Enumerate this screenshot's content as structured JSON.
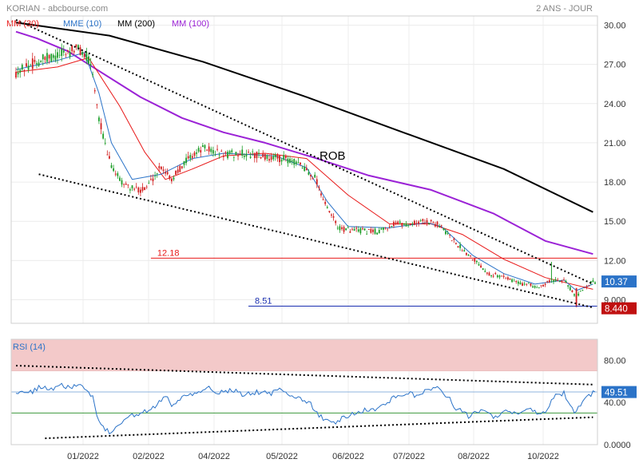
{
  "header": {
    "source": "KORIAN - abcbourse.com",
    "period": "2 ANS - JOUR"
  },
  "legend": [
    {
      "label": "MM (30)",
      "color": "#e81919"
    },
    {
      "label": "MME (10)",
      "color": "#2b73c8"
    },
    {
      "label": "MM (200)",
      "color": "#000000"
    },
    {
      "label": "MM (100)",
      "color": "#9b22d6"
    }
  ],
  "colors": {
    "up_candle": "#1f9e2a",
    "down_candle": "#d22020",
    "trendline": "#000000",
    "h_line_resistance": "#e81919",
    "h_line_support": "#1a2fb0",
    "rsi_line": "#2b73c8",
    "rsi_overbought_zone": "#f3c9c9",
    "price_badge": "#2b73c8",
    "low_badge": "#c01010"
  },
  "chart_data": [
    {
      "type": "candlestick",
      "title": "",
      "x_ticks": [
        "01/2022",
        "02/2022",
        "04/2022",
        "05/2022",
        "06/2022",
        "07/2022",
        "08/2022",
        "10/2022"
      ],
      "y_ticks": [
        "30.00",
        "27.00",
        "24.00",
        "21.00",
        "18.00",
        "15.00",
        "12.00",
        "9.000"
      ],
      "ylim": [
        7.2,
        30.7
      ],
      "trend_label": "ROB",
      "price_path": [
        {
          "i": 0,
          "p": 26.4
        },
        {
          "i": 10,
          "p": 27.2
        },
        {
          "i": 22,
          "p": 27.8
        },
        {
          "i": 30,
          "p": 28.2
        },
        {
          "i": 36,
          "p": 27.2
        },
        {
          "i": 40,
          "p": 23.0
        },
        {
          "i": 44,
          "p": 20.0
        },
        {
          "i": 50,
          "p": 18.1
        },
        {
          "i": 56,
          "p": 17.5
        },
        {
          "i": 62,
          "p": 17.4
        },
        {
          "i": 70,
          "p": 19.2
        },
        {
          "i": 75,
          "p": 18.2
        },
        {
          "i": 82,
          "p": 19.7
        },
        {
          "i": 90,
          "p": 20.6
        },
        {
          "i": 100,
          "p": 20.1
        },
        {
          "i": 110,
          "p": 20.2
        },
        {
          "i": 120,
          "p": 19.9
        },
        {
          "i": 130,
          "p": 19.8
        },
        {
          "i": 138,
          "p": 19.2
        },
        {
          "i": 144,
          "p": 18.4
        },
        {
          "i": 150,
          "p": 15.9
        },
        {
          "i": 156,
          "p": 14.4
        },
        {
          "i": 164,
          "p": 14.3
        },
        {
          "i": 174,
          "p": 14.2
        },
        {
          "i": 182,
          "p": 14.8
        },
        {
          "i": 190,
          "p": 14.8
        },
        {
          "i": 198,
          "p": 15.0
        },
        {
          "i": 204,
          "p": 14.7
        },
        {
          "i": 212,
          "p": 13.3
        },
        {
          "i": 220,
          "p": 12.2
        },
        {
          "i": 228,
          "p": 11.0
        },
        {
          "i": 236,
          "p": 10.7
        },
        {
          "i": 244,
          "p": 10.2
        },
        {
          "i": 252,
          "p": 10.0
        },
        {
          "i": 258,
          "p": 10.5
        },
        {
          "i": 264,
          "p": 10.6
        },
        {
          "i": 268,
          "p": 9.6
        },
        {
          "i": 270,
          "p": 9.2
        },
        {
          "i": 274,
          "p": 10.0
        },
        {
          "i": 278,
          "p": 10.37
        }
      ],
      "series": [
        {
          "name": "MM (200)",
          "color": "#000000",
          "width": 2,
          "points": [
            {
              "i": 0,
              "p": 30.2
            },
            {
              "i": 45,
              "p": 29.2
            },
            {
              "i": 90,
              "p": 27.2
            },
            {
              "i": 140,
              "p": 24.5
            },
            {
              "i": 190,
              "p": 21.6
            },
            {
              "i": 235,
              "p": 19.0
            },
            {
              "i": 278,
              "p": 15.7
            }
          ]
        },
        {
          "name": "MM (100)",
          "color": "#9b22d6",
          "width": 2,
          "points": [
            {
              "i": 0,
              "p": 29.5
            },
            {
              "i": 10,
              "p": 29.0
            },
            {
              "i": 25,
              "p": 28.0
            },
            {
              "i": 40,
              "p": 26.5
            },
            {
              "i": 60,
              "p": 24.5
            },
            {
              "i": 80,
              "p": 22.9
            },
            {
              "i": 100,
              "p": 21.8
            },
            {
              "i": 120,
              "p": 21.0
            },
            {
              "i": 145,
              "p": 19.8
            },
            {
              "i": 170,
              "p": 18.5
            },
            {
              "i": 200,
              "p": 17.4
            },
            {
              "i": 230,
              "p": 15.6
            },
            {
              "i": 255,
              "p": 13.5
            },
            {
              "i": 278,
              "p": 12.5
            }
          ]
        },
        {
          "name": "MM (30)",
          "color": "#e81919",
          "width": 1,
          "points": [
            {
              "i": 0,
              "p": 26.4
            },
            {
              "i": 20,
              "p": 26.8
            },
            {
              "i": 35,
              "p": 27.5
            },
            {
              "i": 50,
              "p": 23.8
            },
            {
              "i": 62,
              "p": 20.3
            },
            {
              "i": 72,
              "p": 18.2
            },
            {
              "i": 85,
              "p": 19.0
            },
            {
              "i": 100,
              "p": 20.0
            },
            {
              "i": 120,
              "p": 20.2
            },
            {
              "i": 140,
              "p": 19.8
            },
            {
              "i": 160,
              "p": 17.0
            },
            {
              "i": 180,
              "p": 14.8
            },
            {
              "i": 200,
              "p": 14.8
            },
            {
              "i": 215,
              "p": 14.0
            },
            {
              "i": 235,
              "p": 12.1
            },
            {
              "i": 255,
              "p": 10.7
            },
            {
              "i": 265,
              "p": 10.3
            },
            {
              "i": 278,
              "p": 9.8
            }
          ]
        },
        {
          "name": "MME (10)",
          "color": "#2b73c8",
          "width": 1,
          "points": [
            {
              "i": 0,
              "p": 26.6
            },
            {
              "i": 20,
              "p": 27.3
            },
            {
              "i": 33,
              "p": 27.9
            },
            {
              "i": 40,
              "p": 24.8
            },
            {
              "i": 46,
              "p": 21.0
            },
            {
              "i": 56,
              "p": 18.2
            },
            {
              "i": 70,
              "p": 18.6
            },
            {
              "i": 85,
              "p": 19.8
            },
            {
              "i": 100,
              "p": 20.2
            },
            {
              "i": 125,
              "p": 20.0
            },
            {
              "i": 140,
              "p": 19.1
            },
            {
              "i": 150,
              "p": 16.5
            },
            {
              "i": 160,
              "p": 14.6
            },
            {
              "i": 180,
              "p": 14.5
            },
            {
              "i": 198,
              "p": 14.9
            },
            {
              "i": 205,
              "p": 14.6
            },
            {
              "i": 220,
              "p": 12.4
            },
            {
              "i": 235,
              "p": 11.0
            },
            {
              "i": 250,
              "p": 10.2
            },
            {
              "i": 264,
              "p": 10.5
            },
            {
              "i": 270,
              "p": 9.7
            },
            {
              "i": 278,
              "p": 10.2
            }
          ]
        }
      ],
      "trendlines": [
        {
          "from": {
            "i": 0,
            "p": 30.4
          },
          "to": {
            "i": 278,
            "p": 10.2
          }
        },
        {
          "from": {
            "i": 11,
            "p": 18.6
          },
          "to": {
            "i": 278,
            "p": 8.4
          }
        }
      ],
      "h_lines": [
        {
          "label": "12.18",
          "value": 12.18,
          "from_i": 65,
          "color": "#e81919"
        },
        {
          "label": "8.51",
          "value": 8.51,
          "from_i": 112,
          "color": "#1a2fb0"
        }
      ],
      "last_price_label": "10.37",
      "last_price": 10.37,
      "low_label": "8.440",
      "low_value": 8.44,
      "n_candles": 280
    },
    {
      "type": "line",
      "title": "RSI (14)",
      "ylim": [
        0,
        100
      ],
      "y_ticks": [
        "80.00",
        "40.00",
        "0.0000"
      ],
      "overbought_zone": [
        70,
        100
      ],
      "ref_levels": [
        {
          "value": 50,
          "color": "#8fb4df"
        },
        {
          "value": 30,
          "color": "#3d9a3d"
        }
      ],
      "rsi_path": [
        {
          "i": 0,
          "p": 50
        },
        {
          "i": 5,
          "p": 47
        },
        {
          "i": 12,
          "p": 55
        },
        {
          "i": 18,
          "p": 52
        },
        {
          "i": 22,
          "p": 58
        },
        {
          "i": 26,
          "p": 53
        },
        {
          "i": 30,
          "p": 56
        },
        {
          "i": 34,
          "p": 52
        },
        {
          "i": 37,
          "p": 45
        },
        {
          "i": 40,
          "p": 22
        },
        {
          "i": 43,
          "p": 14
        },
        {
          "i": 46,
          "p": 10
        },
        {
          "i": 50,
          "p": 20
        },
        {
          "i": 55,
          "p": 27
        },
        {
          "i": 60,
          "p": 29
        },
        {
          "i": 66,
          "p": 34
        },
        {
          "i": 72,
          "p": 46
        },
        {
          "i": 76,
          "p": 36
        },
        {
          "i": 80,
          "p": 44
        },
        {
          "i": 86,
          "p": 49
        },
        {
          "i": 92,
          "p": 54
        },
        {
          "i": 98,
          "p": 50
        },
        {
          "i": 104,
          "p": 52
        },
        {
          "i": 110,
          "p": 47
        },
        {
          "i": 116,
          "p": 50
        },
        {
          "i": 122,
          "p": 48
        },
        {
          "i": 128,
          "p": 53
        },
        {
          "i": 133,
          "p": 46
        },
        {
          "i": 138,
          "p": 43
        },
        {
          "i": 142,
          "p": 38
        },
        {
          "i": 146,
          "p": 28
        },
        {
          "i": 150,
          "p": 22
        },
        {
          "i": 154,
          "p": 20
        },
        {
          "i": 158,
          "p": 26
        },
        {
          "i": 164,
          "p": 31
        },
        {
          "i": 170,
          "p": 33
        },
        {
          "i": 176,
          "p": 36
        },
        {
          "i": 182,
          "p": 45
        },
        {
          "i": 188,
          "p": 49
        },
        {
          "i": 193,
          "p": 46
        },
        {
          "i": 198,
          "p": 52
        },
        {
          "i": 203,
          "p": 55
        },
        {
          "i": 208,
          "p": 45
        },
        {
          "i": 212,
          "p": 35
        },
        {
          "i": 218,
          "p": 27
        },
        {
          "i": 224,
          "p": 32
        },
        {
          "i": 230,
          "p": 27
        },
        {
          "i": 236,
          "p": 31
        },
        {
          "i": 242,
          "p": 29
        },
        {
          "i": 248,
          "p": 34
        },
        {
          "i": 252,
          "p": 27
        },
        {
          "i": 256,
          "p": 34
        },
        {
          "i": 260,
          "p": 47
        },
        {
          "i": 264,
          "p": 49
        },
        {
          "i": 266,
          "p": 42
        },
        {
          "i": 269,
          "p": 28
        },
        {
          "i": 272,
          "p": 38
        },
        {
          "i": 275,
          "p": 44
        },
        {
          "i": 278,
          "p": 49.51
        }
      ],
      "trendlines": [
        {
          "from": {
            "i": 0,
            "p": 75
          },
          "to": {
            "i": 278,
            "p": 57
          }
        },
        {
          "from": {
            "i": 14,
            "p": 6
          },
          "to": {
            "i": 278,
            "p": 26
          }
        }
      ],
      "last_value_label": "49.51",
      "last_value": 49.51
    }
  ]
}
